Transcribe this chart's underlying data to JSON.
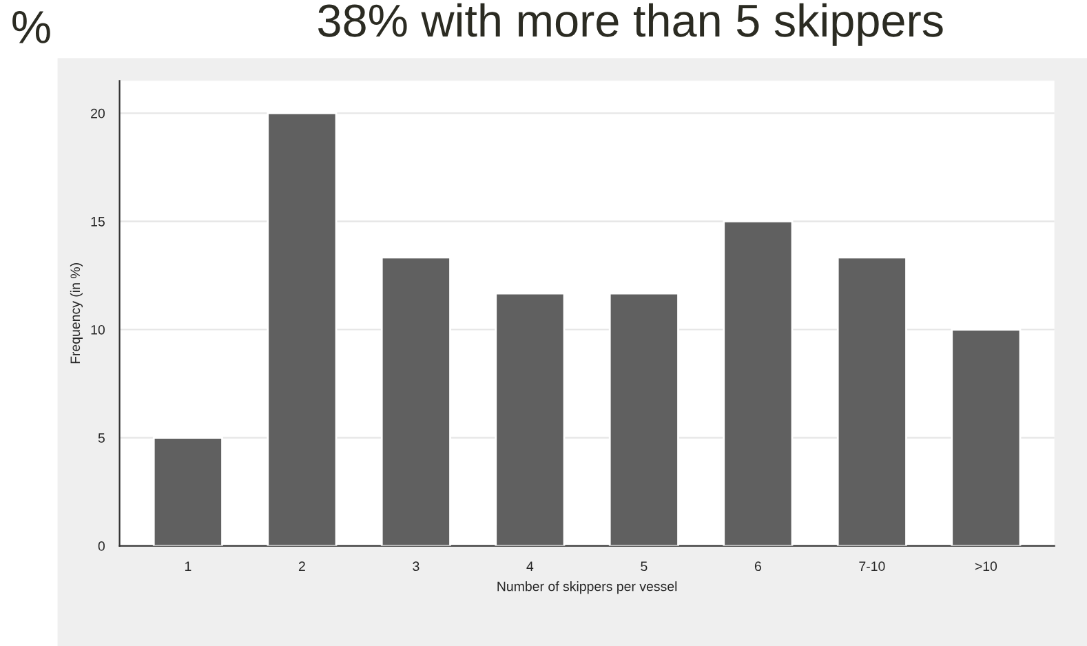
{
  "chart_data": {
    "type": "bar",
    "title": "38% with more than 5 skippers",
    "categories": [
      "1",
      "2",
      "3",
      "4",
      "5",
      "6",
      "7-10",
      ">10"
    ],
    "values": [
      5,
      20,
      13.33,
      11.67,
      11.67,
      15,
      13.33,
      10
    ],
    "color": "#606060",
    "xlabel": "Number of skippers per vessel",
    "ylabel": "Frequency (in %)",
    "ylim": [
      0,
      21.5
    ],
    "yticks": [
      0,
      5,
      10,
      15,
      20
    ],
    "grid": "y",
    "annotations": [
      "%"
    ]
  }
}
